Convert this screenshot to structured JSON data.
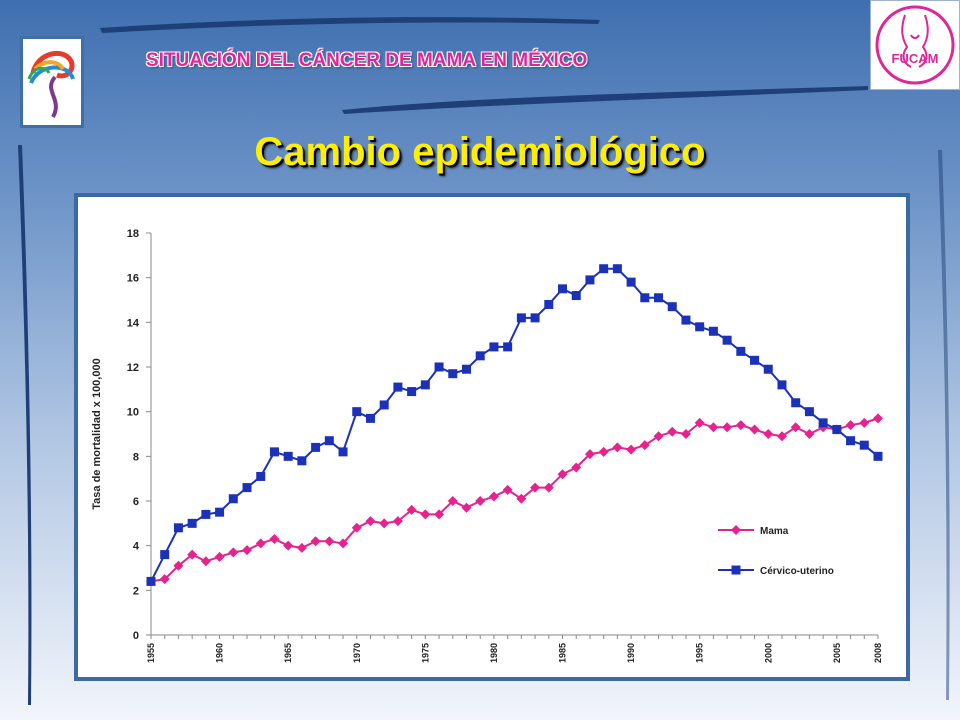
{
  "header": {
    "title": "SITUACIÓN  DEL CÁNCER DE MAMA EN MÉXICO",
    "logo_right_text": "FUCAM"
  },
  "slide": {
    "title": "Cambio epidemiológico"
  },
  "colors": {
    "mama": "#e6228f",
    "cervico": "#1a31b8",
    "title": "#ffee00",
    "header": "#e0249a"
  },
  "icons": {
    "left_logo": "ribbon-swirl-icon",
    "right_logo": "fucam-logo-icon"
  },
  "chart_data": {
    "type": "line",
    "title": "",
    "xlabel": "",
    "ylabel": "Tasa de mortalidad x 100,000",
    "ylim": [
      0,
      18
    ],
    "yticks": [
      0,
      2,
      4,
      6,
      8,
      10,
      12,
      14,
      16,
      18
    ],
    "xlim": [
      1955,
      2008
    ],
    "xticks": [
      "1955",
      "1960",
      "1965",
      "1970",
      "1975",
      "1980",
      "1985",
      "1990",
      "1995",
      "2000",
      "2005",
      "2008"
    ],
    "grid": false,
    "legend_position": "bottom-right",
    "x": [
      1955,
      1956,
      1957,
      1958,
      1959,
      1960,
      1961,
      1962,
      1963,
      1964,
      1965,
      1966,
      1967,
      1968,
      1969,
      1970,
      1971,
      1972,
      1973,
      1974,
      1975,
      1976,
      1977,
      1978,
      1979,
      1980,
      1981,
      1982,
      1983,
      1984,
      1985,
      1986,
      1987,
      1988,
      1989,
      1990,
      1991,
      1992,
      1993,
      1994,
      1995,
      1996,
      1997,
      1998,
      1999,
      2000,
      2001,
      2002,
      2003,
      2004,
      2005,
      2006,
      2007,
      2008
    ],
    "series": [
      {
        "name": "Mama",
        "marker": "diamond",
        "values": [
          2.4,
          2.5,
          3.1,
          3.6,
          3.3,
          3.5,
          3.7,
          3.8,
          4.1,
          4.3,
          4.0,
          3.9,
          4.2,
          4.2,
          4.1,
          4.8,
          5.1,
          5.0,
          5.1,
          5.6,
          5.4,
          5.4,
          6.0,
          5.7,
          6.0,
          6.2,
          6.5,
          6.1,
          6.6,
          6.6,
          7.2,
          7.5,
          8.1,
          8.2,
          8.4,
          8.3,
          8.5,
          8.9,
          9.1,
          9.0,
          9.5,
          9.3,
          9.3,
          9.4,
          9.2,
          9.0,
          8.9,
          9.3,
          9.0,
          9.3,
          9.2,
          9.4,
          9.5,
          9.7
        ]
      },
      {
        "name": "Cérvico-uterino",
        "marker": "square",
        "values": [
          2.4,
          3.6,
          4.8,
          5.0,
          5.4,
          5.5,
          6.1,
          6.6,
          7.1,
          8.2,
          8.0,
          7.8,
          8.4,
          8.7,
          8.2,
          10.0,
          9.7,
          10.3,
          11.1,
          10.9,
          11.2,
          12.0,
          11.7,
          11.9,
          12.5,
          12.9,
          12.9,
          14.2,
          14.2,
          14.8,
          15.5,
          15.2,
          15.9,
          16.4,
          16.4,
          15.8,
          15.1,
          15.1,
          14.7,
          14.1,
          13.8,
          13.6,
          13.2,
          12.7,
          12.3,
          11.9,
          11.2,
          10.4,
          10.0,
          9.5,
          9.2,
          8.7,
          8.5,
          8.0
        ]
      }
    ]
  }
}
